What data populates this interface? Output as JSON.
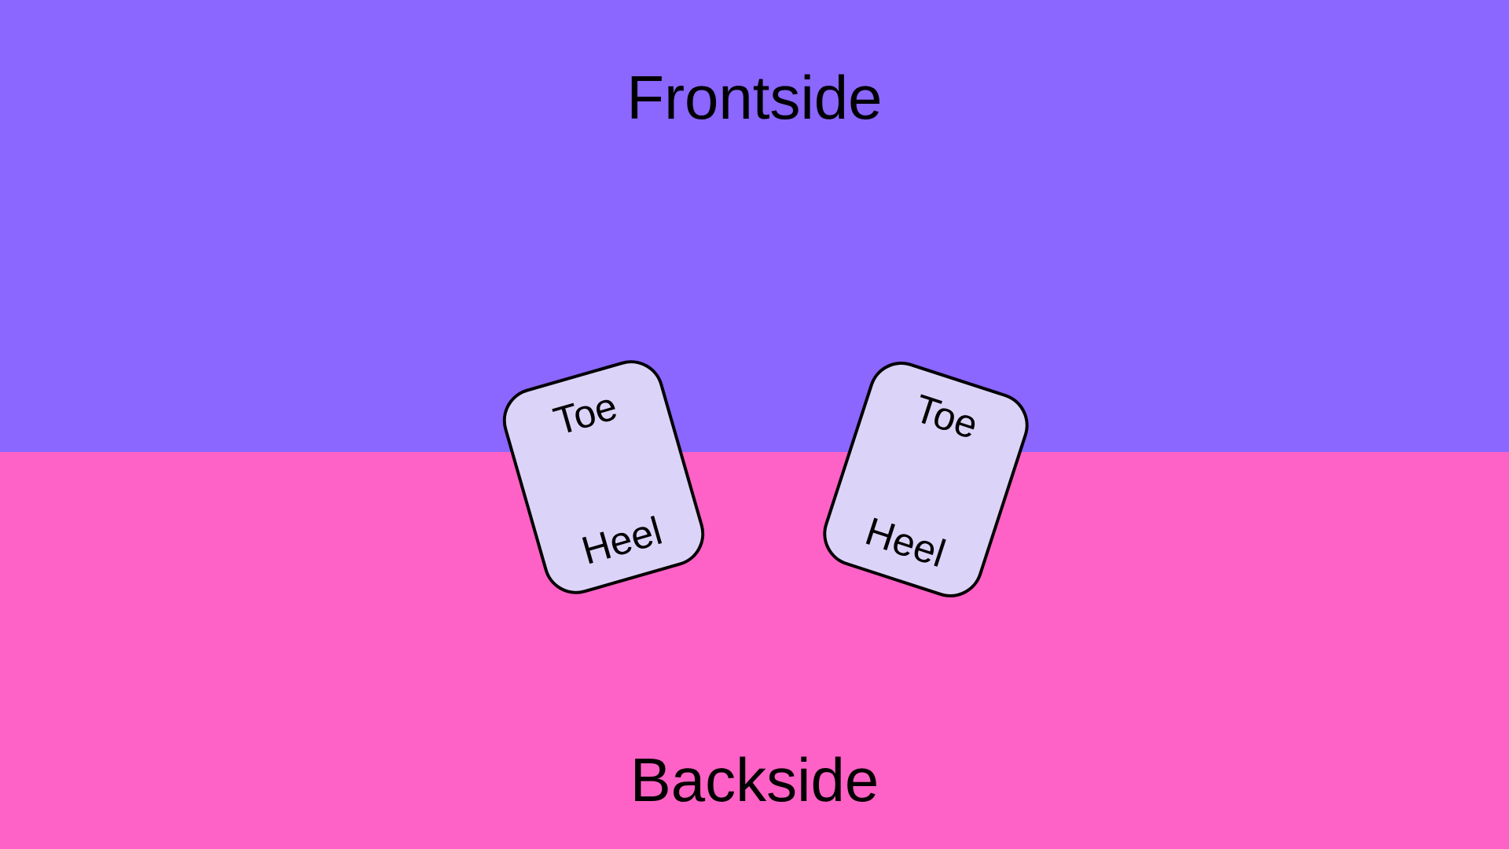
{
  "zones": {
    "front": {
      "label": "Frontside",
      "color": "#8b66ff"
    },
    "back": {
      "label": "Backside",
      "color": "#ff62c6"
    }
  },
  "feet": {
    "left": {
      "toe": "Toe",
      "heel": "Heel"
    },
    "right": {
      "toe": "Toe",
      "heel": "Heel"
    }
  },
  "foot_fill": "#dcd3f8"
}
